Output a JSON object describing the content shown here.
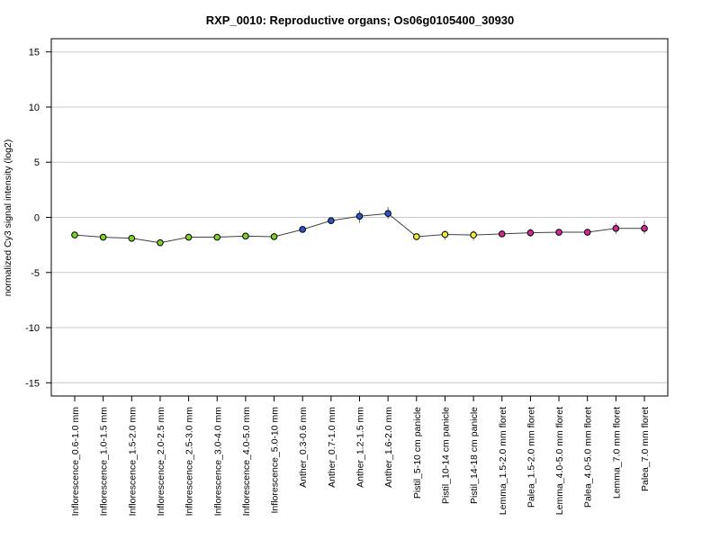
{
  "chart_data": {
    "type": "line",
    "title": "RXP_0010: Reproductive organs; Os06g0105400_30930",
    "xlabel": "",
    "ylabel": "normalized Cy3 signal intensity (log2)",
    "ylim": [
      -16.2,
      16.2
    ],
    "yticks": [
      -15,
      -10,
      -5,
      0,
      5,
      10,
      15
    ],
    "grid": "horizontal",
    "categories": [
      "Inflorescence_0.6-1.0 mm",
      "Inflorescence_1.0-1.5 mm",
      "Inflorescence_1.5-2.0 mm",
      "Inflorescence_2.0-2.5 mm",
      "Inflorescence_2.5-3.0 mm",
      "Inflorescence_3.0-4.0 mm",
      "Inflorescence_4.0-5.0 mm",
      "Inflorescence_5.0-10 mm",
      "Anther_0.3-0.6 mm",
      "Anther_0.7-1.0 mm",
      "Anther_1.2-1.5 mm",
      "Anther_1.6-2.0 mm",
      "Pistil_5-10 cm panicle",
      "Pistil_10-14 cm panicle",
      "Pistil_14-18 cm panicle",
      "Lemma_1.5-2.0 mm floret",
      "Palea_1.5-2.0 mm floret",
      "Lemma_4.0-5.0 mm floret",
      "Palea_4.0-5.0 mm floret",
      "Lemma_7.0 mm floret",
      "Palea_7.0 mm floret"
    ],
    "series": [
      {
        "values": [
          -1.6,
          -1.8,
          -1.9,
          -2.3,
          -1.8,
          -1.8,
          -1.7,
          -1.75,
          -1.1,
          -0.3,
          0.1,
          0.35,
          -1.75,
          -1.55,
          -1.6,
          -1.5,
          -1.4,
          -1.35,
          -1.35,
          -1.0,
          -1.0
        ],
        "error_low": [
          0,
          0,
          0,
          0,
          0,
          0,
          0,
          0,
          0,
          0.2,
          0.6,
          0.5,
          0.2,
          0.5,
          0.5,
          0.3,
          0.35,
          0,
          0,
          0.5,
          0.5
        ],
        "error_high": [
          0,
          0,
          0,
          0,
          0,
          0,
          0,
          0,
          0,
          0.2,
          0.5,
          0.6,
          0.2,
          0.35,
          0.4,
          0.3,
          0.35,
          0,
          0,
          0.5,
          0.7
        ],
        "colors": [
          "#7fd12c",
          "#7fd12c",
          "#7fd12c",
          "#7fd12c",
          "#7fd12c",
          "#7fd12c",
          "#7fd12c",
          "#7fd12c",
          "#2b56c8",
          "#2b56c8",
          "#2b56c8",
          "#2b56c8",
          "#f0ea3c",
          "#f0ea3c",
          "#f0ea3c",
          "#d42a8f",
          "#d42a8f",
          "#d42a8f",
          "#d42a8f",
          "#d42a8f",
          "#d42a8f"
        ]
      }
    ]
  }
}
